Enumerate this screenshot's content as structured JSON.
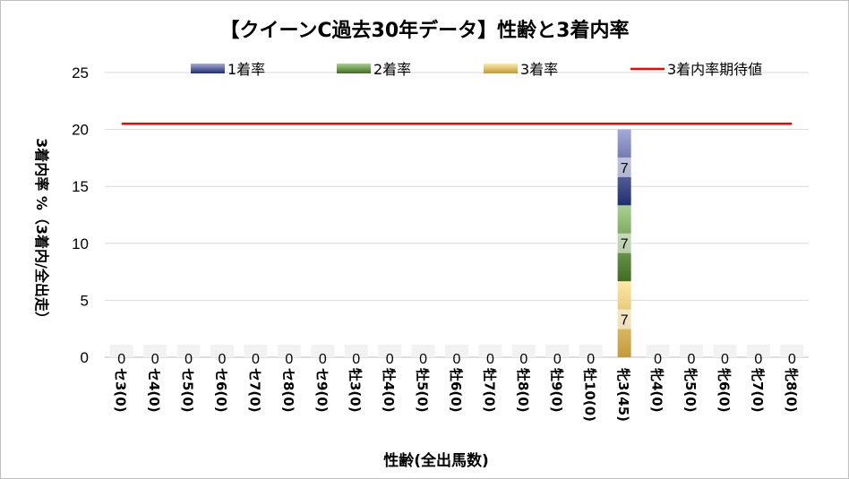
{
  "chart_data": {
    "type": "bar",
    "stacked": true,
    "title": "【クイーンC過去30年データ】性齢と3着内率",
    "xlabel": "性齢(全出馬数)",
    "ylabel": "3着内率 %（3着内/全出走）",
    "ylim": [
      0,
      25
    ],
    "yticks": [
      "0",
      "5",
      "10",
      "15",
      "20",
      "25"
    ],
    "categories": [
      "セ3(0)",
      "セ4(0)",
      "セ5(0)",
      "セ6(0)",
      "セ7(0)",
      "セ8(0)",
      "セ9(0)",
      "牡3(0)",
      "牡4(0)",
      "牡5(0)",
      "牡6(0)",
      "牡7(0)",
      "牡8(0)",
      "牡9(0)",
      "牡10(0)",
      "牝3(45)",
      "牝4(0)",
      "牝5(0)",
      "牝6(0)",
      "牝7(0)",
      "牝8(0)"
    ],
    "series": [
      {
        "name": "3着率",
        "values": [
          0,
          0,
          0,
          0,
          0,
          0,
          0,
          0,
          0,
          0,
          0,
          0,
          0,
          0,
          0,
          6.67,
          0,
          0,
          0,
          0,
          0
        ],
        "labels": [
          "",
          "",
          "",
          "",
          "",
          "",
          "",
          "",
          "",
          "",
          "",
          "",
          "",
          "",
          "",
          "7",
          "",
          "",
          "",
          "",
          ""
        ],
        "colors": [
          "#c29a3a",
          "#ffe9a6"
        ]
      },
      {
        "name": "2着率",
        "values": [
          0,
          0,
          0,
          0,
          0,
          0,
          0,
          0,
          0,
          0,
          0,
          0,
          0,
          0,
          0,
          6.67,
          0,
          0,
          0,
          0,
          0
        ],
        "labels": [
          "",
          "",
          "",
          "",
          "",
          "",
          "",
          "",
          "",
          "",
          "",
          "",
          "",
          "",
          "",
          "7",
          "",
          "",
          "",
          "",
          ""
        ],
        "colors": [
          "#3f6d22",
          "#a9d18e"
        ]
      },
      {
        "name": "1着率",
        "values": [
          0,
          0,
          0,
          0,
          0,
          0,
          0,
          0,
          0,
          0,
          0,
          0,
          0,
          0,
          0,
          6.67,
          0,
          0,
          0,
          0,
          0
        ],
        "labels": [
          "",
          "",
          "",
          "",
          "",
          "",
          "",
          "",
          "",
          "",
          "",
          "",
          "",
          "",
          "",
          "7",
          "",
          "",
          "",
          "",
          ""
        ],
        "colors": [
          "#1f2f6e",
          "#a4abd9"
        ]
      }
    ],
    "totals": [
      0,
      0,
      0,
      0,
      0,
      0,
      0,
      0,
      0,
      0,
      0,
      0,
      0,
      0,
      0,
      20,
      0,
      0,
      0,
      0,
      0
    ],
    "total_labels": [
      "0",
      "0",
      "0",
      "0",
      "0",
      "0",
      "0",
      "0",
      "0",
      "0",
      "0",
      "0",
      "0",
      "0",
      "0",
      "",
      "0",
      "0",
      "0",
      "0",
      "0"
    ],
    "reference_line": {
      "name": "3着内率期待値",
      "value": 20.5,
      "color": "#ff0000"
    },
    "legend": [
      {
        "name": "1着率",
        "type": "bar",
        "colors": [
          "#1f2f6e",
          "#a4abd9"
        ]
      },
      {
        "name": "2着率",
        "type": "bar",
        "colors": [
          "#3f6d22",
          "#a9d18e"
        ]
      },
      {
        "name": "3着率",
        "type": "bar",
        "colors": [
          "#c29a3a",
          "#ffe9a6"
        ]
      },
      {
        "name": "3着内率期待値",
        "type": "line",
        "color": "#ff0000"
      }
    ],
    "legend_position": "top",
    "grid": true
  }
}
